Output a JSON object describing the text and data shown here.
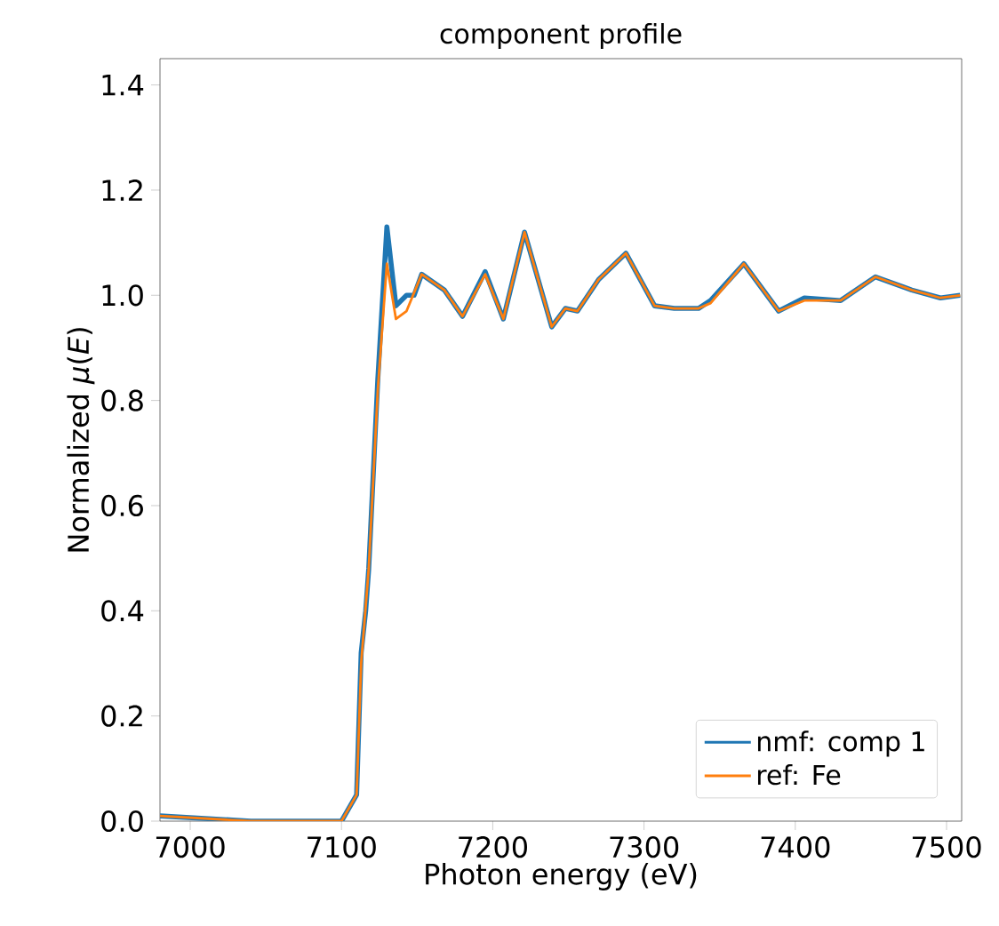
{
  "chart_data": {
    "type": "line",
    "title": "component profile",
    "xlabel": "Photon energy (eV)",
    "ylabel": "Normalized *μ*(*E*)",
    "xlim": [
      6980,
      7510
    ],
    "ylim": [
      0,
      1.45
    ],
    "xticks": [
      7000,
      7100,
      7200,
      7300,
      7400,
      7500
    ],
    "yticks": [
      {
        "value": 0,
        "label": "0.0"
      },
      {
        "value": 0.2,
        "label": "0.2"
      },
      {
        "value": 0.4,
        "label": "0.4"
      },
      {
        "value": 0.6,
        "label": "0.6"
      },
      {
        "value": 0.8,
        "label": "0.8"
      },
      {
        "value": 1.0,
        "label": "1.0"
      },
      {
        "value": 1.2,
        "label": "1.2"
      },
      {
        "value": 1.4,
        "label": "1.4"
      }
    ],
    "legend": "bottom right",
    "grid": false,
    "marker": "none",
    "line_style": "solid",
    "series": [
      {
        "name": "nmf: comp 1",
        "color": "#1f77b4",
        "x": [
          6980,
          7040,
          7100,
          7110,
          7113,
          7116,
          7118,
          7124,
          7130,
          7136,
          7143,
          7148,
          7153,
          7168,
          7180,
          7195,
          7207,
          7221,
          7239,
          7248,
          7256,
          7270,
          7288,
          7307,
          7320,
          7336,
          7344,
          7366,
          7389,
          7406,
          7430,
          7453,
          7477,
          7496,
          7509
        ],
        "values": [
          0.01,
          0.0,
          0.0,
          0.05,
          0.32,
          0.4,
          0.48,
          0.84,
          1.13,
          0.98,
          1.0,
          1.0,
          1.04,
          1.01,
          0.96,
          1.045,
          0.955,
          1.12,
          0.94,
          0.975,
          0.97,
          1.03,
          1.08,
          0.98,
          0.975,
          0.975,
          0.99,
          1.06,
          0.97,
          0.995,
          0.99,
          1.035,
          1.01,
          0.995,
          1.0
        ]
      },
      {
        "name": "ref: Fe",
        "color": "#ff7f0e",
        "x": [
          6980,
          7040,
          7100,
          7110,
          7113,
          7118,
          7124,
          7130,
          7136,
          7143,
          7153,
          7168,
          7180,
          7195,
          7207,
          7221,
          7239,
          7248,
          7256,
          7270,
          7288,
          7307,
          7320,
          7336,
          7344,
          7366,
          7389,
          7406,
          7430,
          7453,
          7477,
          7496,
          7509
        ],
        "values": [
          0.01,
          0.0,
          0.0,
          0.05,
          0.3,
          0.48,
          0.82,
          1.06,
          0.955,
          0.97,
          1.04,
          1.01,
          0.96,
          1.04,
          0.955,
          1.12,
          0.94,
          0.975,
          0.97,
          1.03,
          1.08,
          0.98,
          0.975,
          0.975,
          0.985,
          1.06,
          0.97,
          0.99,
          0.99,
          1.035,
          1.01,
          0.995,
          1.0
        ]
      }
    ]
  }
}
